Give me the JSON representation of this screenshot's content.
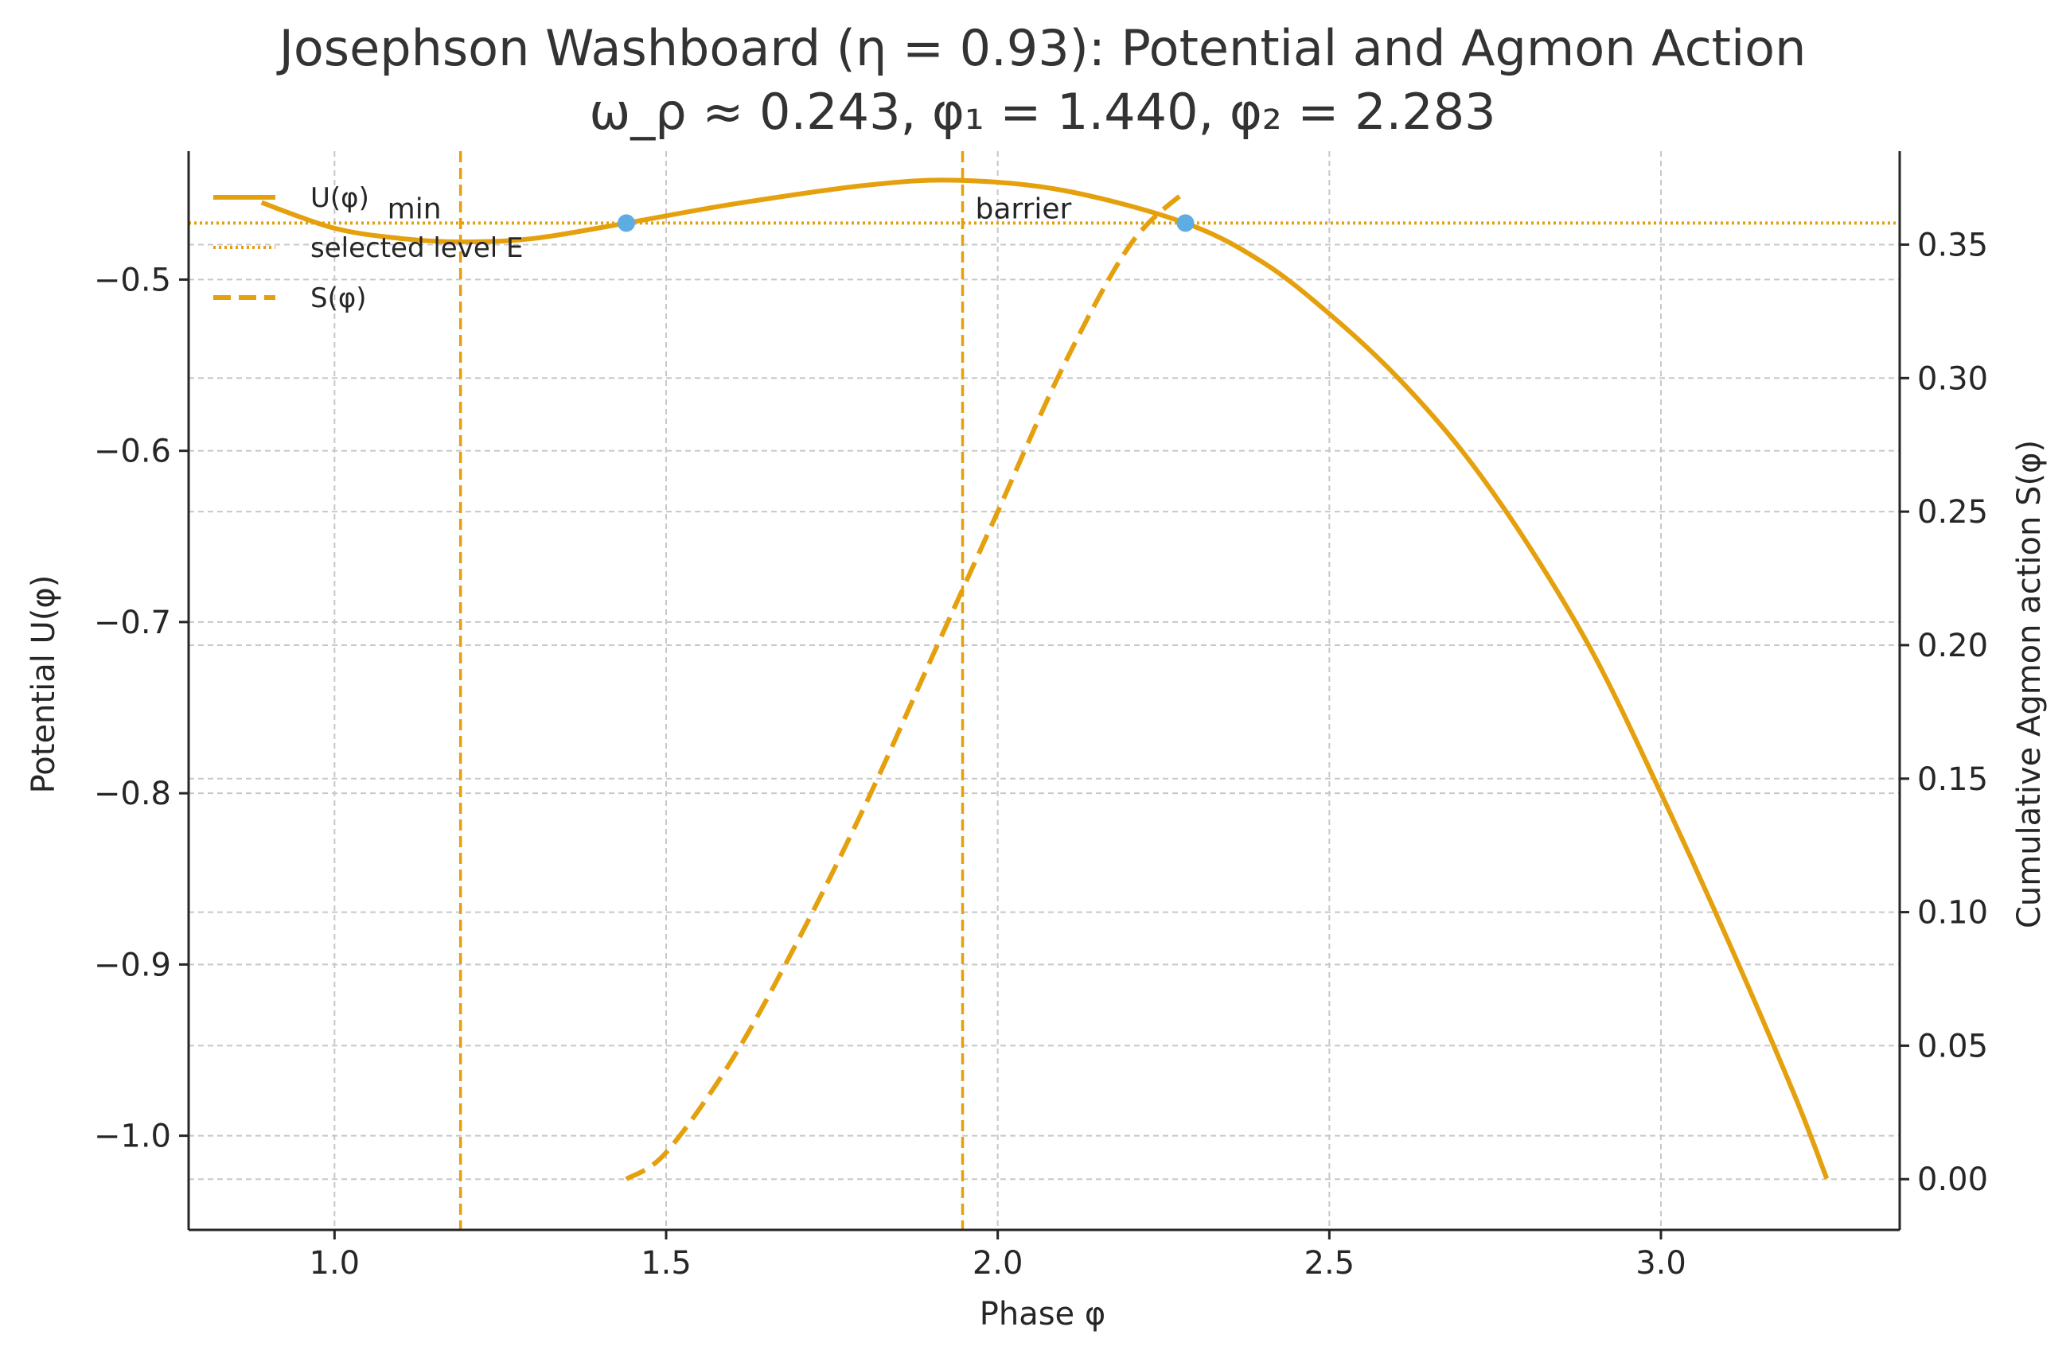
{
  "chart_data": {
    "type": "line",
    "title_line1": "Josephson Washboard (η = 0.93): Potential and Agmon Action",
    "title_line2": "ω_ρ ≈ 0.243,  φ₁ = 1.440, φ₂ = 2.283",
    "xlabel": "Phase φ",
    "ylabel_left": "Potential U(φ)",
    "ylabel_right": "Cumulative Agmon action S(φ)",
    "xlim": [
      0.78,
      3.36
    ],
    "ylim_left": [
      -1.055,
      -0.425
    ],
    "ylim_right": [
      -0.019,
      0.385
    ],
    "x_ticks": [
      1.0,
      1.5,
      2.0,
      2.5,
      3.0
    ],
    "x_tick_labels": [
      "1.0",
      "1.5",
      "2.0",
      "2.5",
      "3.0"
    ],
    "y_left_ticks": [
      -0.5,
      -0.6,
      -0.7,
      -0.8,
      -0.9,
      -1.0
    ],
    "y_left_tick_labels": [
      "−0.5",
      "−0.6",
      "−0.7",
      "−0.8",
      "−0.9",
      "−1.0"
    ],
    "y_right_ticks": [
      0.0,
      0.05,
      0.1,
      0.15,
      0.2,
      0.25,
      0.3,
      0.35
    ],
    "y_right_tick_labels": [
      "0.00",
      "0.05",
      "0.10",
      "0.15",
      "0.20",
      "0.25",
      "0.30",
      "0.35"
    ],
    "grid": true,
    "legend_position": "top-left",
    "legend": [
      {
        "label": "U(φ)",
        "style": "solid"
      },
      {
        "label": "selected level E",
        "style": "dotted"
      },
      {
        "label": "S(φ)",
        "style": "dashed"
      }
    ],
    "series": [
      {
        "name": "U(φ)",
        "axis": "left",
        "style": "solid",
        "color": "#E5A00D",
        "x": [
          0.89,
          1.0,
          1.1,
          1.19,
          1.3,
          1.44,
          1.6,
          1.8,
          1.94,
          2.1,
          2.283,
          2.4,
          2.5,
          2.6,
          2.7,
          2.8,
          2.9,
          3.0,
          3.1,
          3.2,
          3.25
        ],
        "y": [
          -0.455,
          -0.47,
          -0.476,
          -0.478,
          -0.476,
          -0.467,
          -0.456,
          -0.445,
          -0.442,
          -0.448,
          -0.467,
          -0.49,
          -0.52,
          -0.556,
          -0.6,
          -0.655,
          -0.72,
          -0.8,
          -0.885,
          -0.975,
          -1.025
        ]
      },
      {
        "name": "S(φ)",
        "axis": "right",
        "style": "dashed",
        "color": "#E5A00D",
        "x": [
          1.44,
          1.5,
          1.6,
          1.7,
          1.8,
          1.9,
          2.0,
          2.1,
          2.2,
          2.283
        ],
        "y": [
          0.0,
          0.01,
          0.045,
          0.09,
          0.14,
          0.195,
          0.25,
          0.305,
          0.35,
          0.37
        ]
      }
    ],
    "level_E": {
      "label": "selected level E",
      "y_left": -0.467,
      "style": "dotted",
      "color": "#E5A00D"
    },
    "vlines": [
      {
        "x": 1.19,
        "label": "min",
        "style": "dashed",
        "color": "#E5A00D"
      },
      {
        "x": 1.947,
        "label": "barrier",
        "style": "dashed",
        "color": "#E5A00D"
      }
    ],
    "turning_points": [
      {
        "x": 1.44,
        "y_left": -0.467,
        "color": "#5DADE2"
      },
      {
        "x": 2.283,
        "y_left": -0.467,
        "color": "#5DADE2"
      }
    ]
  }
}
